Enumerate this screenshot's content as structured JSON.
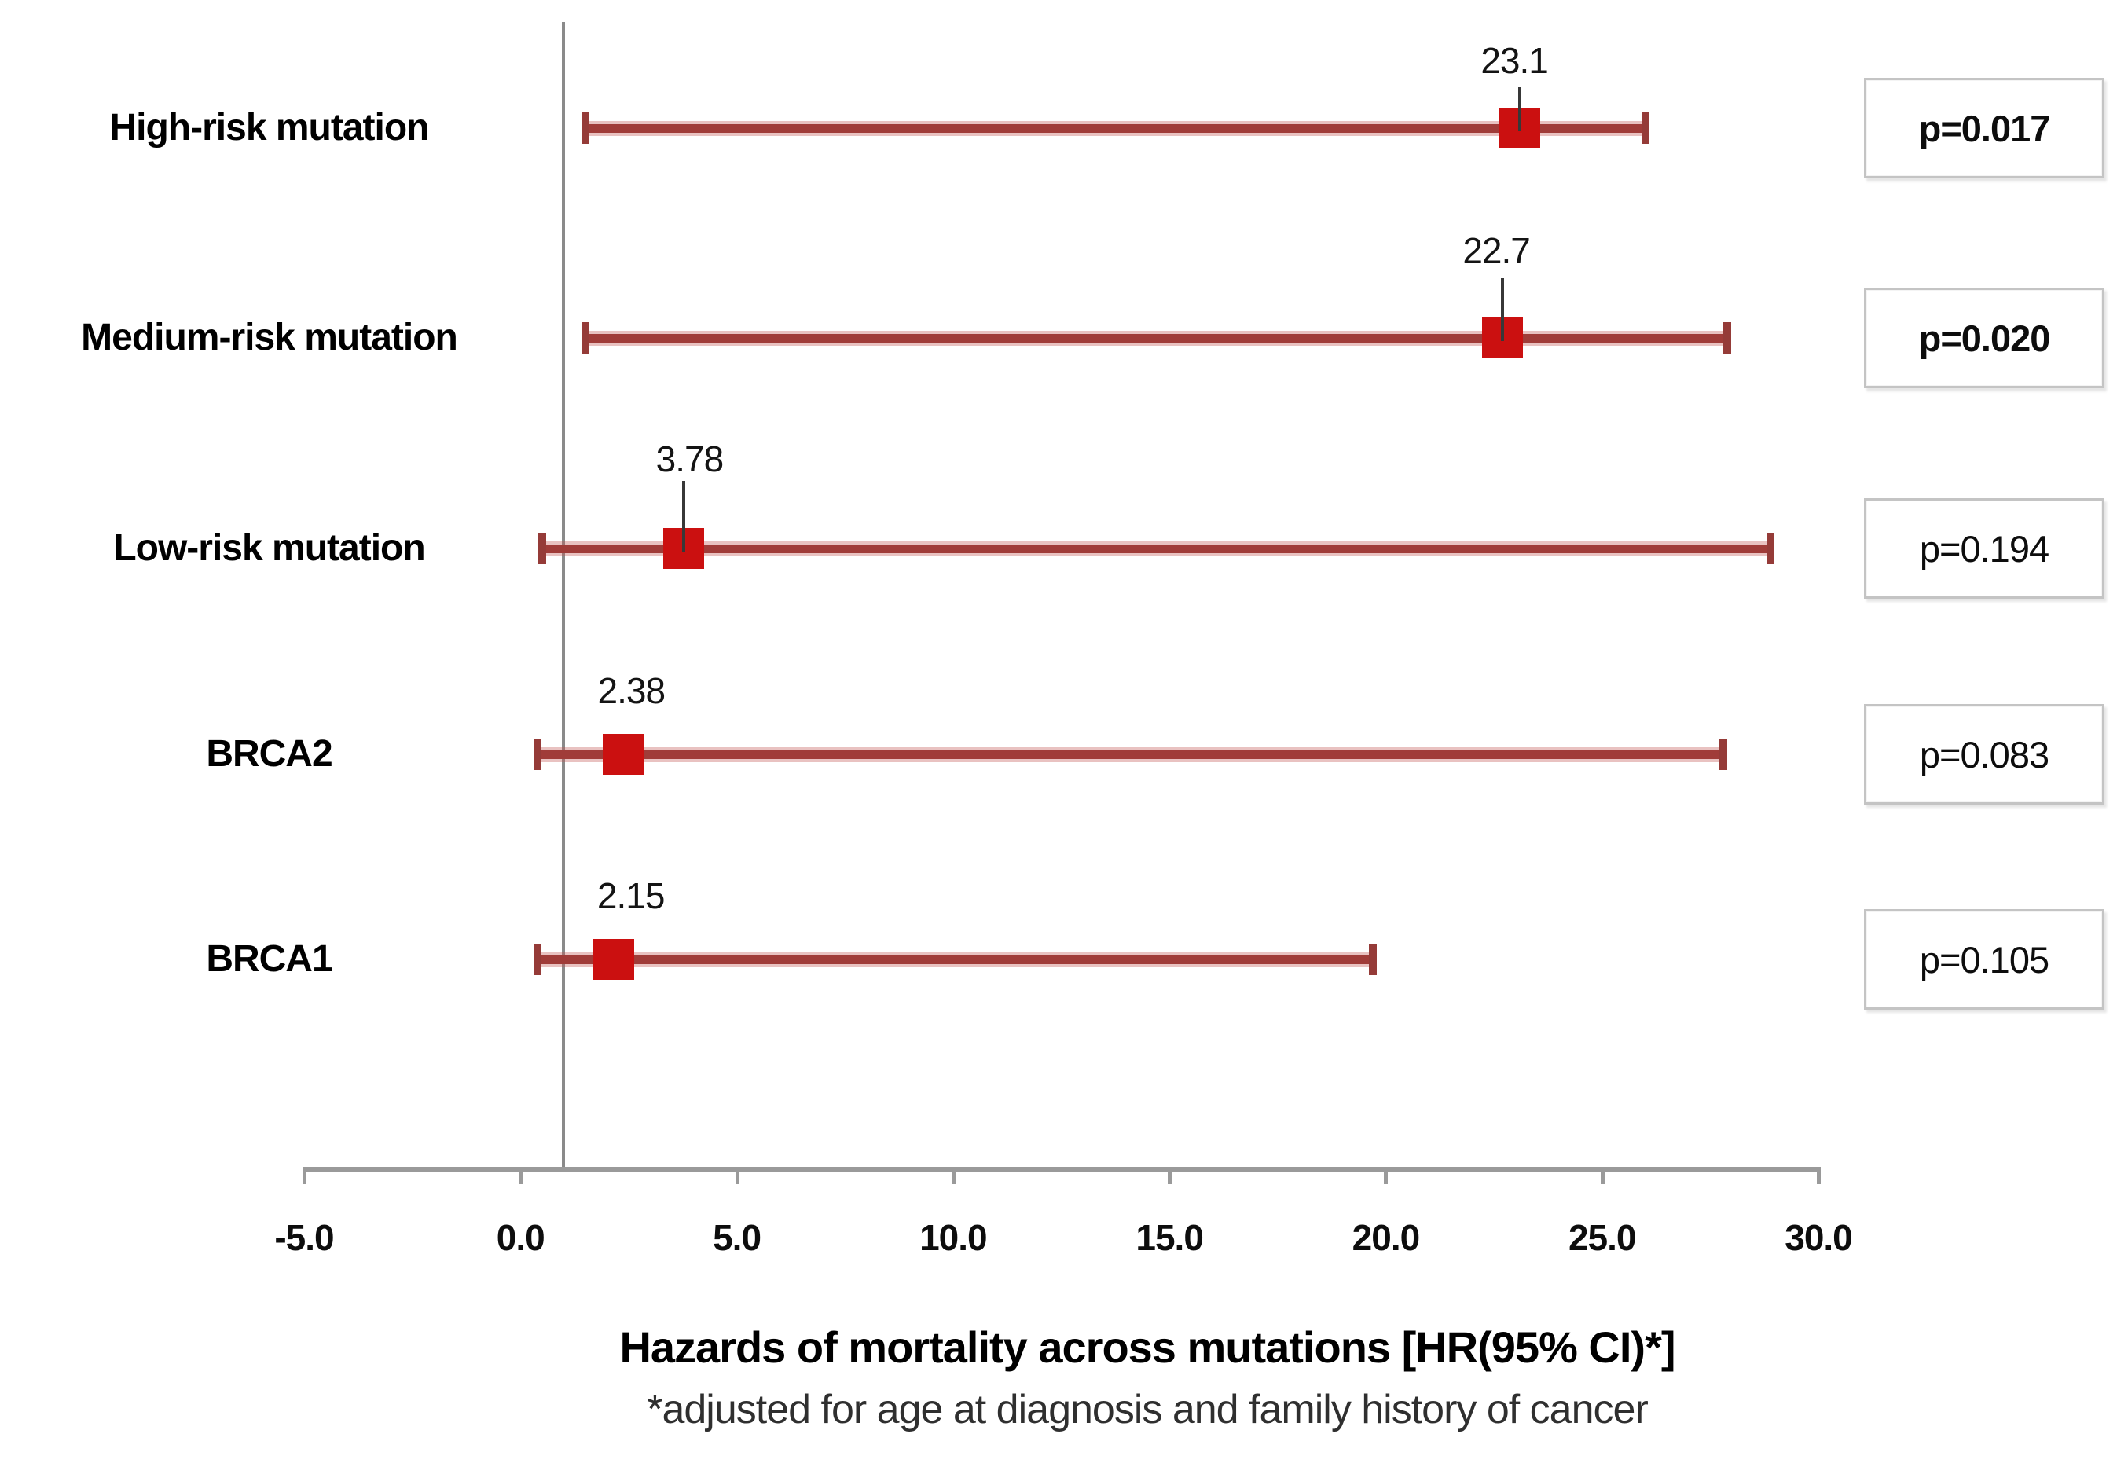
{
  "colors": {
    "marker": "#cb1010",
    "ci_line": "#a03c39",
    "ci_line_halo": "#c0504d",
    "ci_cap": "#953b38",
    "reference_line": "#8a8a8a",
    "axis": "#9a9a9a",
    "p_box_border": "#c4c4c4",
    "text": "#000000"
  },
  "chart_data": {
    "type": "scatter",
    "subtype": "forest-plot",
    "title": "Hazards of mortality across mutations [HR(95% CI)*]",
    "subtitle": "*adjusted for age at diagnosis and family history of cancer",
    "x_axis": {
      "min": -5,
      "max": 30,
      "step": 5,
      "tick_labels": [
        "-5.0",
        "0.0",
        "5.0",
        "10.0",
        "15.0",
        "20.0",
        "25.0",
        "30.0"
      ]
    },
    "reference_line_x": 1.0,
    "grid": false,
    "legend": "none",
    "rows": [
      {
        "label": "High-risk mutation",
        "hr": 23.1,
        "hr_label": "23.1",
        "ci_low": 1.5,
        "ci_high": 26.0,
        "p_label": "p=0.017",
        "significant": true
      },
      {
        "label": "Medium-risk mutation",
        "hr": 22.7,
        "hr_label": "22.7",
        "ci_low": 1.5,
        "ci_high": 27.9,
        "p_label": "p=0.020",
        "significant": true
      },
      {
        "label": "Low-risk mutation",
        "hr": 3.78,
        "hr_label": "3.78",
        "ci_low": 0.5,
        "ci_high": 28.9,
        "p_label": "p=0.194",
        "significant": false
      },
      {
        "label": "BRCA2",
        "hr": 2.38,
        "hr_label": "2.38",
        "ci_low": 0.4,
        "ci_high": 27.8,
        "p_label": "p=0.083",
        "significant": false
      },
      {
        "label": "BRCA1",
        "hr": 2.15,
        "hr_label": "2.15",
        "ci_low": 0.4,
        "ci_high": 19.7,
        "p_label": "p=0.105",
        "significant": false
      }
    ]
  }
}
